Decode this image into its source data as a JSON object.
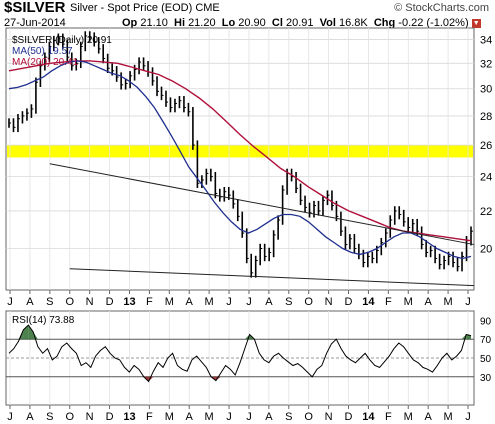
{
  "header": {
    "symbol": "$SILVER",
    "description": "Silver - Spot Price (EOD)",
    "exchange": "CME",
    "brand": "© StockCharts.com",
    "date": "27-Jun-2014",
    "open_label": "Op",
    "open": "21.10",
    "high_label": "Hi",
    "high": "21.20",
    "low_label": "Lo",
    "low": "20.90",
    "close_label": "Cl",
    "close": "20.91",
    "volume_label": "Vol",
    "volume": "16.8K",
    "change_label": "Chg",
    "change": "-0.22 (-1.02%)",
    "change_arrow": "down-arrow-icon"
  },
  "chart_data": [
    {
      "type": "bar",
      "title": "$SILVER",
      "legend": [
        {
          "label": "$SILVER (Daily) 20.91",
          "color": "#000000"
        },
        {
          "label": "MA(50) 19.57",
          "color": "#1f2f8f"
        },
        {
          "label": "MA(200) 20.41",
          "color": "#b0103a"
        }
      ],
      "legend_placement": "top-left",
      "ylim": [
        18,
        35
      ],
      "y_ticks": [
        20,
        22,
        24,
        26,
        28,
        30,
        32,
        34
      ],
      "y_tick_labels": [
        "20",
        "22",
        "24",
        "26",
        "28",
        "30",
        "32",
        "34"
      ],
      "scale": "log",
      "grid": true,
      "x_labels": [
        "J",
        "A",
        "S",
        "O",
        "N",
        "D",
        "13",
        "F",
        "M",
        "A",
        "M",
        "J",
        "J",
        "A",
        "S",
        "O",
        "N",
        "D",
        "14",
        "F",
        "M",
        "A",
        "M",
        "J"
      ],
      "price_series": {
        "name": "$SILVER (Daily)",
        "color": "#000000",
        "points": [
          27.5,
          27.2,
          27.8,
          28.0,
          28.2,
          28.5,
          30.5,
          31.8,
          32.5,
          33.4,
          33.9,
          34.1,
          33.6,
          32.5,
          31.8,
          32.0,
          33.4,
          34.3,
          34.2,
          33.8,
          33.2,
          32.4,
          31.6,
          31.4,
          30.9,
          30.3,
          30.4,
          31.0,
          31.5,
          32.1,
          31.8,
          31.3,
          30.6,
          29.8,
          29.5,
          29.0,
          28.6,
          28.9,
          29.1,
          28.6,
          28.3,
          26.0,
          23.6,
          23.8,
          24.2,
          24.0,
          23.0,
          22.8,
          23.1,
          22.9,
          22.4,
          21.7,
          20.8,
          19.5,
          18.8,
          19.4,
          20.0,
          19.6,
          19.8,
          20.7,
          21.5,
          23.2,
          24.2,
          24.0,
          23.3,
          22.6,
          22.2,
          21.9,
          22.3,
          22.0,
          22.6,
          22.9,
          22.3,
          21.7,
          20.9,
          20.2,
          20.5,
          20.0,
          19.7,
          19.3,
          19.6,
          19.5,
          19.9,
          20.3,
          20.8,
          21.5,
          22.0,
          21.8,
          21.4,
          21.1,
          21.3,
          20.9,
          20.2,
          19.8,
          19.9,
          19.5,
          19.2,
          19.4,
          19.6,
          19.3,
          19.1,
          19.6,
          20.4,
          20.9
        ]
      },
      "ma50": {
        "name": "MA(50)",
        "value": 19.57,
        "color": "#1f2f8f",
        "points": [
          30.0,
          30.1,
          30.3,
          30.6,
          30.9,
          31.4,
          31.8,
          32.1,
          32.2,
          32.1,
          31.8,
          31.5,
          31.2,
          31.0,
          30.6,
          30.1,
          29.4,
          28.6,
          27.6,
          26.6,
          25.6,
          24.6,
          23.9,
          23.2,
          22.5,
          21.9,
          21.4,
          21.0,
          20.8,
          21.0,
          21.3,
          21.6,
          21.8,
          21.8,
          21.7,
          21.4,
          21.0,
          20.6,
          20.3,
          20.0,
          19.8,
          19.7,
          19.8,
          20.0,
          20.3,
          20.6,
          20.8,
          20.8,
          20.6,
          20.3,
          20.0,
          19.8,
          19.6,
          19.5,
          19.6
        ]
      },
      "ma200": {
        "name": "MA(200)",
        "value": 20.41,
        "color": "#b0103a",
        "points": [
          31.4,
          31.6,
          31.8,
          32.0,
          32.1,
          32.2,
          32.2,
          32.1,
          32.0,
          31.7,
          31.4,
          31.1,
          30.6,
          30.0,
          29.3,
          28.5,
          27.6,
          26.7,
          25.9,
          25.2,
          24.5,
          24.0,
          23.4,
          22.9,
          22.4,
          22.0,
          21.7,
          21.4,
          21.1,
          20.9,
          20.8,
          20.7,
          20.6,
          20.5,
          20.4
        ]
      },
      "support_zone": {
        "from": 25.2,
        "to": 26.0,
        "color": "#ffff00"
      },
      "trendlines": [
        {
          "name": "upper-trendline",
          "start": [
            "S",
            24.8
          ],
          "end": [
            "J",
            20.2
          ]
        },
        {
          "name": "lower-trendline",
          "start": [
            "O",
            19.0
          ],
          "end": [
            "J",
            18.2
          ]
        }
      ]
    },
    {
      "type": "line",
      "title": "RSI(14) 73.88",
      "legend": [
        {
          "label": "RSI(14) 73.88",
          "color": "#000000"
        }
      ],
      "ylim": [
        0,
        100
      ],
      "y_ticks": [
        30,
        50,
        70,
        90
      ],
      "y_tick_labels": [
        "30",
        "50",
        "70",
        "90"
      ],
      "reference_lines": [
        30,
        50,
        70
      ],
      "overbought_fill": "#2e6b2e",
      "oversold_fill": "#8a1a1a",
      "x_labels": [
        "J",
        "A",
        "S",
        "O",
        "N",
        "D",
        "13",
        "F",
        "M",
        "A",
        "M",
        "J",
        "J",
        "A",
        "S",
        "O",
        "N",
        "D",
        "14",
        "F",
        "M",
        "A",
        "M",
        "J"
      ],
      "values": [
        55,
        60,
        68,
        80,
        85,
        78,
        62,
        55,
        60,
        48,
        52,
        62,
        66,
        60,
        55,
        42,
        45,
        40,
        52,
        58,
        62,
        55,
        50,
        48,
        40,
        35,
        42,
        38,
        30,
        25,
        36,
        45,
        40,
        50,
        55,
        42,
        38,
        36,
        48,
        52,
        46,
        40,
        30,
        26,
        34,
        42,
        38,
        32,
        45,
        60,
        75,
        70,
        55,
        48,
        45,
        52,
        55,
        50,
        46,
        42,
        44,
        40,
        35,
        30,
        38,
        42,
        55,
        65,
        70,
        60,
        52,
        48,
        45,
        50,
        55,
        48,
        42,
        40,
        46,
        52,
        60,
        66,
        62,
        55,
        48,
        45,
        40,
        38,
        35,
        42,
        50,
        55,
        48,
        52,
        58,
        75,
        73.88
      ]
    }
  ]
}
